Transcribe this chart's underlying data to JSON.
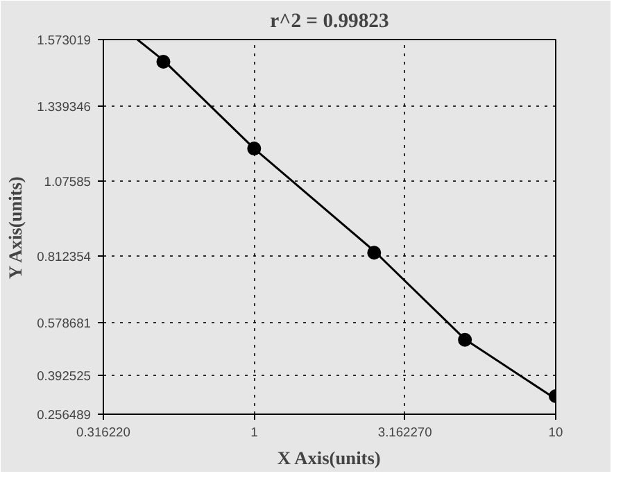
{
  "chart_data": {
    "type": "scatter",
    "title": "r^2 = 0.99823",
    "xlabel": "X Axis(units)",
    "ylabel": "Y Axis(units)",
    "log": "x",
    "grid": true,
    "marker": "circle",
    "xlim": [
      0.31622,
      10
    ],
    "ylim": [
      0.256489,
      1.573019
    ],
    "xticks": [
      {
        "value": 0.31622,
        "label": "0.316220"
      },
      1,
      {
        "value": 3.16227,
        "label": "3.162270"
      },
      10
    ],
    "yticks": [
      0.256489,
      0.392525,
      0.578681,
      0.812354,
      1.07585,
      1.339346,
      1.573019
    ],
    "series": [
      {
        "color": "#000000",
        "x": [
          0.5,
          1,
          2.5,
          5,
          10
        ],
        "values": [
          1.495,
          1.19,
          0.824,
          0.518,
          0.32
        ]
      },
      {
        "type": "line",
        "color": "#000000",
        "line_style": "solid",
        "marker": "none",
        "x": [
          0.41,
          0.5,
          1,
          2.5,
          5,
          10
        ],
        "values": [
          1.573,
          1.5,
          1.19,
          0.83,
          0.52,
          0.31
        ]
      }
    ]
  }
}
